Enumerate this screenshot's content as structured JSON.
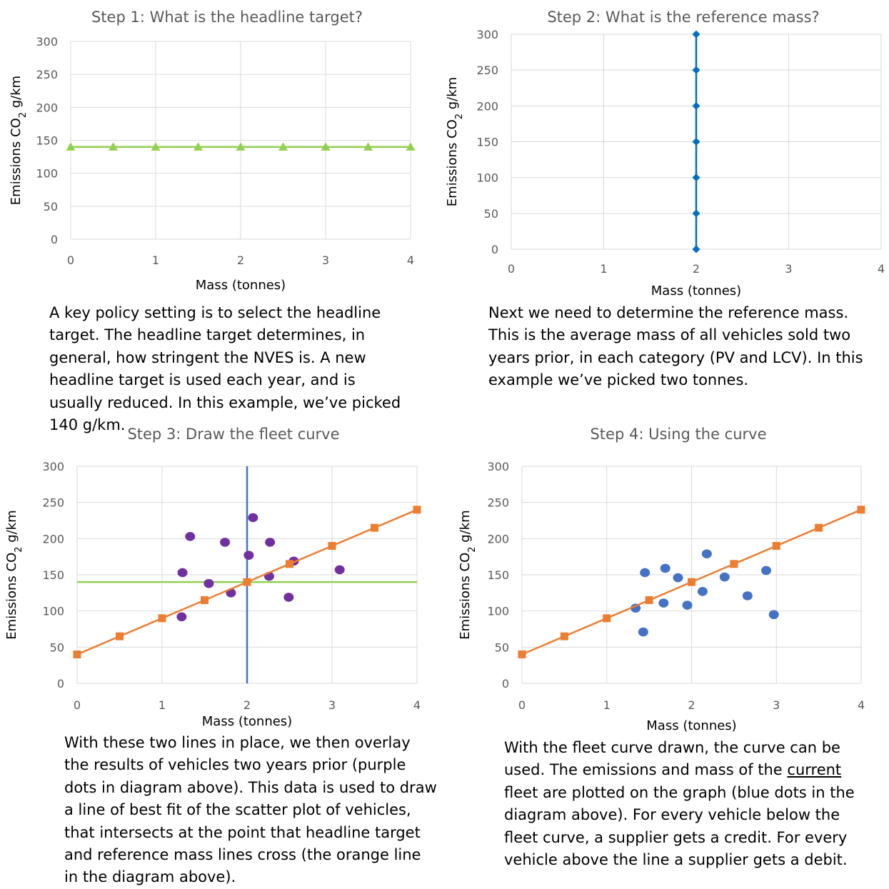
{
  "colors": {
    "green": "#92d050",
    "blue_line": "#0070c0",
    "blue_vline": "#4472c4",
    "orange": "#ed7d31",
    "purple": "#7030a0",
    "blue_dots": "#4472c4",
    "grid": "#d9d9d9",
    "axis_text": "#595959",
    "title_text": "#595959"
  },
  "paragraphs": {
    "p1": "A key policy setting is to select the headline target. The headline target determines, in general, how stringent the NVES is. A new headline target is used each year, and is usually reduced. In this example, we’ve picked 140 g/km.",
    "p2": "Next we need to determine the reference mass. This is the average mass of all vehicles sold two years prior, in each category (PV and LCV). In this example we’ve picked two tonnes.",
    "p3": "With these two lines in place, we then overlay the results of vehicles two years prior (purple dots in diagram above). This data is used to draw a line of best fit of the scatter plot of vehicles, that intersects at the point that headline target and reference mass lines cross (the orange line in the diagram above).",
    "p4_a": "With the fleet curve drawn, the curve can be used. The emissions and mass of the ",
    "p4_u": "current",
    "p4_b": " fleet are plotted on the graph (blue dots in the diagram above). For every vehicle below the fleet curve, a supplier gets a credit. For every vehicle above the line a supplier gets a debit."
  },
  "chart_data": [
    {
      "id": "c1",
      "type": "line",
      "title": "Step 1: What is the headline target?",
      "xlabel": "Mass (tonnes)",
      "ylabel_prefix": "Emissions CO",
      "ylabel_sub": "2",
      "ylabel_suffix": " g/km",
      "xlim": [
        0,
        4
      ],
      "ylim": [
        0,
        300
      ],
      "xticks": [
        0,
        1,
        2,
        3,
        4
      ],
      "yticks": [
        0,
        50,
        100,
        150,
        200,
        250,
        300
      ],
      "grid": true,
      "series": [
        {
          "marker": "triangle",
          "color": "#92d050",
          "x": [
            0,
            0.5,
            1,
            1.5,
            2,
            2.5,
            3,
            3.5,
            4
          ],
          "y": [
            140,
            140,
            140,
            140,
            140,
            140,
            140,
            140,
            140
          ]
        }
      ]
    },
    {
      "id": "c2",
      "type": "line",
      "title": "Step 2: What is the reference mass?",
      "xlabel": "Mass (tonnes)",
      "ylabel_prefix": "Emissions CO",
      "ylabel_sub": "2",
      "ylabel_suffix": " g/km",
      "xlim": [
        0,
        4
      ],
      "ylim": [
        0,
        300
      ],
      "xticks": [
        0,
        1,
        2,
        3,
        4
      ],
      "yticks": [
        0,
        50,
        100,
        150,
        200,
        250,
        300
      ],
      "grid": true,
      "series": [
        {
          "marker": "diamond",
          "color": "#0070c0",
          "x": [
            2,
            2,
            2,
            2,
            2,
            2,
            2
          ],
          "y": [
            0,
            50,
            100,
            150,
            200,
            250,
            300
          ]
        }
      ]
    },
    {
      "id": "c3",
      "type": "scatter",
      "title": "Step 3: Draw the fleet curve",
      "xlabel": "Mass (tonnes)",
      "ylabel_prefix": "Emissions CO",
      "ylabel_sub": "2",
      "ylabel_suffix": " g/km",
      "xlim": [
        0,
        4
      ],
      "ylim": [
        0,
        300
      ],
      "xticks": [
        0,
        1,
        2,
        3,
        4
      ],
      "yticks": [
        0,
        50,
        100,
        150,
        200,
        250,
        300
      ],
      "grid": true,
      "series": [
        {
          "kind": "line",
          "color": "#92d050",
          "x": [
            0,
            4
          ],
          "y": [
            140,
            140
          ]
        },
        {
          "kind": "line",
          "color": "#4472c4",
          "x": [
            2,
            2
          ],
          "y": [
            0,
            300
          ]
        },
        {
          "kind": "points",
          "marker": "circle",
          "color": "#7030a0",
          "x": [
            1.33,
            1.24,
            1.23,
            1.55,
            1.74,
            1.81,
            2.02,
            2.07,
            2.26,
            2.27,
            2.49,
            2.55,
            3.09
          ],
          "y": [
            203,
            153,
            92,
            138,
            195,
            125,
            177,
            229,
            148,
            195,
            119,
            169,
            157
          ]
        },
        {
          "kind": "line",
          "marker": "square",
          "color": "#ed7d31",
          "x": [
            0,
            0.5,
            1,
            1.5,
            2,
            2.5,
            3,
            3.5,
            4
          ],
          "y": [
            40,
            65,
            90,
            115,
            140,
            165,
            190,
            215,
            240
          ]
        }
      ]
    },
    {
      "id": "c4",
      "type": "scatter",
      "title": "Step 4: Using the curve",
      "xlabel": "Mass (tonnes)",
      "ylabel_prefix": "Emissions CO",
      "ylabel_sub": "2",
      "ylabel_suffix": " g/km",
      "xlim": [
        0,
        4
      ],
      "ylim": [
        0,
        300
      ],
      "xticks": [
        0,
        1,
        2,
        3,
        4
      ],
      "yticks": [
        0,
        50,
        100,
        150,
        200,
        250,
        300
      ],
      "grid": true,
      "series": [
        {
          "kind": "points",
          "marker": "circle",
          "color": "#4472c4",
          "x": [
            1.34,
            1.43,
            1.45,
            1.67,
            1.69,
            1.84,
            1.95,
            2.13,
            2.18,
            2.39,
            2.66,
            2.88,
            2.97
          ],
          "y": [
            104,
            71,
            153,
            111,
            159,
            146,
            108,
            127,
            179,
            147,
            121,
            156,
            95
          ]
        },
        {
          "kind": "line",
          "marker": "square",
          "color": "#ed7d31",
          "x": [
            0,
            0.5,
            1,
            1.5,
            2,
            2.5,
            3,
            3.5,
            4
          ],
          "y": [
            40,
            65,
            90,
            115,
            140,
            165,
            190,
            215,
            240
          ]
        }
      ]
    }
  ]
}
